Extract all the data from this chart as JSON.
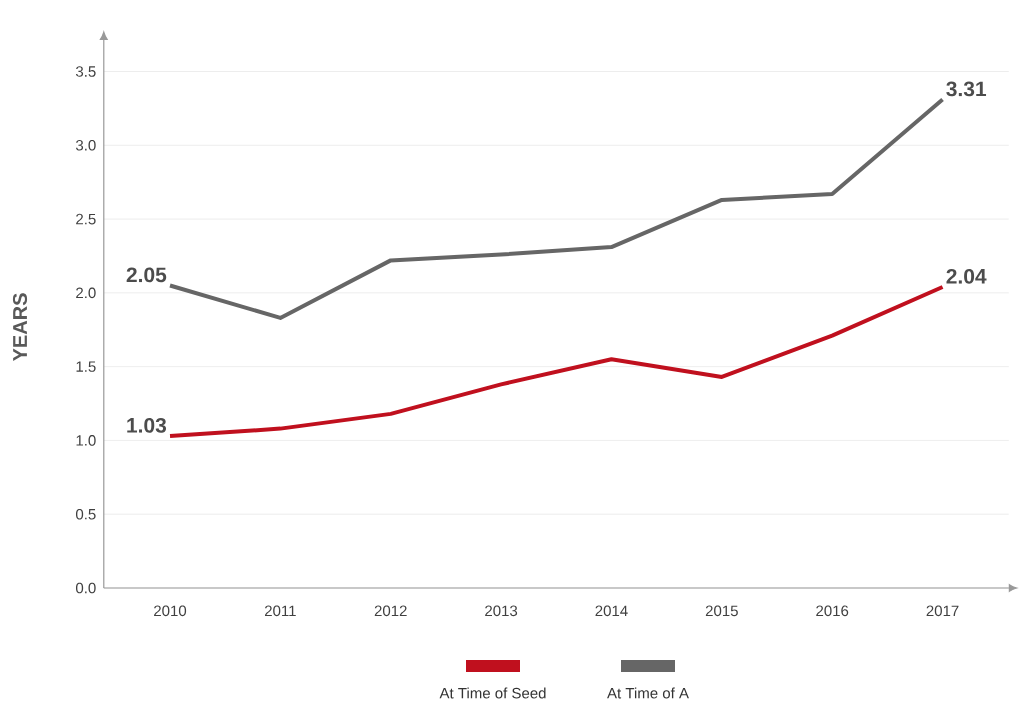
{
  "chart_data": {
    "type": "line",
    "ylabel": "YEARS",
    "categories": [
      "2010",
      "2011",
      "2012",
      "2013",
      "2014",
      "2015",
      "2016",
      "2017"
    ],
    "series": [
      {
        "name": "At Time of Seed",
        "color": "#c0101e",
        "values": [
          1.03,
          1.08,
          1.18,
          1.38,
          1.55,
          1.43,
          1.71,
          2.04
        ],
        "value_labels": [
          "1.03",
          null,
          null,
          null,
          null,
          null,
          null,
          "2.04"
        ]
      },
      {
        "name": "At Time of A",
        "color": "#666666",
        "values": [
          2.05,
          1.83,
          2.22,
          2.26,
          2.31,
          2.63,
          2.67,
          3.31
        ],
        "value_labels": [
          "2.05",
          null,
          null,
          null,
          null,
          null,
          null,
          "3.31"
        ]
      }
    ],
    "ylim": [
      0,
      3.7
    ],
    "yticks": [
      {
        "value": 0,
        "label": "0.0"
      },
      {
        "value": 0.5,
        "label": "0.5"
      },
      {
        "value": 1,
        "label": "1.0"
      },
      {
        "value": 1.5,
        "label": "1.5"
      },
      {
        "value": 2,
        "label": "2.0"
      },
      {
        "value": 2.5,
        "label": "2.5"
      },
      {
        "value": 3,
        "label": "3.0"
      },
      {
        "value": 3.5,
        "label": "3.5"
      }
    ],
    "grid": "y",
    "legend": "bottom",
    "marker": "none",
    "line_style": "solid"
  }
}
